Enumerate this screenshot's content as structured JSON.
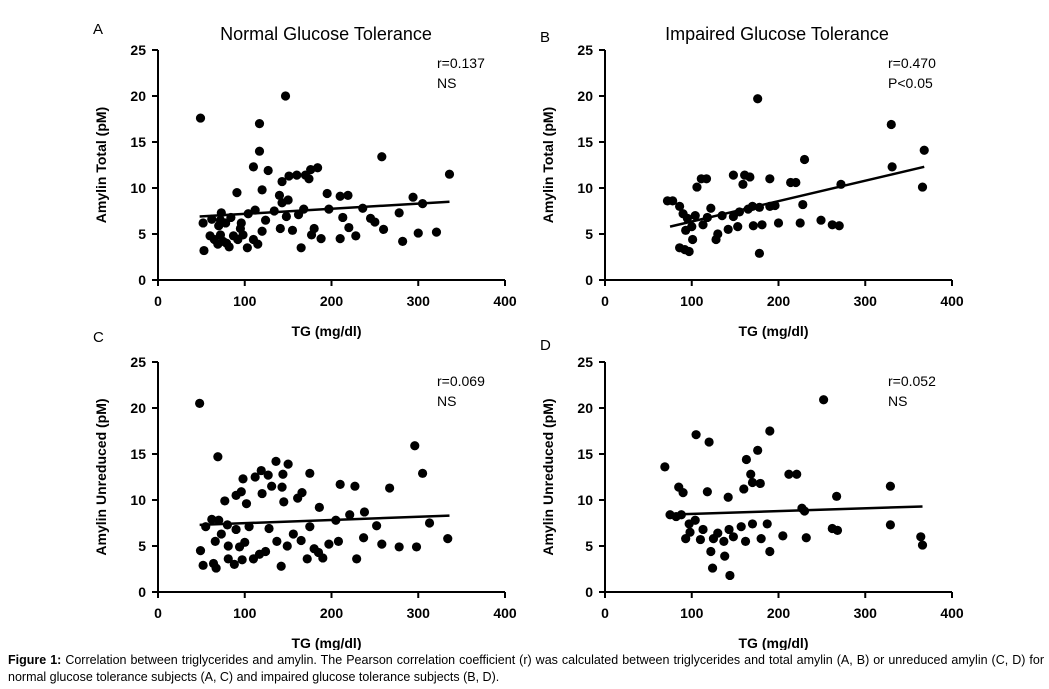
{
  "chart_data": [
    {
      "type": "scatter",
      "panel_letter": "A",
      "title": "Normal Glucose Tolerance",
      "xlabel": "TG (mg/dl)",
      "ylabel": "Amylin Total (pM)",
      "xlim": [
        0,
        400
      ],
      "ylim": [
        0,
        25
      ],
      "xticks": [
        0,
        100,
        200,
        300,
        400
      ],
      "yticks": [
        0,
        5,
        10,
        15,
        20,
        25
      ],
      "stats": [
        "r=0.137",
        "NS"
      ],
      "regression": {
        "x": [
          48,
          336
        ],
        "y": [
          6.9,
          8.5
        ]
      },
      "points": [
        [
          49,
          17.6
        ],
        [
          147,
          20.0
        ],
        [
          117,
          17.0
        ],
        [
          117,
          14.0
        ],
        [
          110,
          12.3
        ],
        [
          127,
          11.9
        ],
        [
          151,
          11.3
        ],
        [
          160,
          11.4
        ],
        [
          170,
          11.4
        ],
        [
          176,
          12.0
        ],
        [
          184,
          12.2
        ],
        [
          258,
          13.4
        ],
        [
          174,
          11.0
        ],
        [
          143,
          10.7
        ],
        [
          336,
          11.5
        ],
        [
          91,
          9.5
        ],
        [
          120,
          9.8
        ],
        [
          140,
          9.2
        ],
        [
          195,
          9.4
        ],
        [
          210,
          9.1
        ],
        [
          219,
          9.2
        ],
        [
          294,
          9.0
        ],
        [
          305,
          8.3
        ],
        [
          143,
          8.4
        ],
        [
          150,
          8.7
        ],
        [
          73,
          7.3
        ],
        [
          104,
          7.2
        ],
        [
          134,
          7.5
        ],
        [
          168,
          7.7
        ],
        [
          197,
          7.7
        ],
        [
          236,
          7.8
        ],
        [
          112,
          7.6
        ],
        [
          52,
          6.2
        ],
        [
          62,
          6.6
        ],
        [
          72,
          6.5
        ],
        [
          84,
          6.8
        ],
        [
          96,
          6.2
        ],
        [
          124,
          6.5
        ],
        [
          148,
          6.9
        ],
        [
          162,
          7.1
        ],
        [
          213,
          6.8
        ],
        [
          245,
          6.7
        ],
        [
          250,
          6.3
        ],
        [
          278,
          7.3
        ],
        [
          70,
          5.9
        ],
        [
          78,
          6.2
        ],
        [
          95,
          5.6
        ],
        [
          120,
          5.3
        ],
        [
          141,
          5.6
        ],
        [
          155,
          5.4
        ],
        [
          180,
          5.6
        ],
        [
          220,
          5.7
        ],
        [
          260,
          5.5
        ],
        [
          300,
          5.1
        ],
        [
          321,
          5.2
        ],
        [
          53,
          3.2
        ],
        [
          60,
          4.8
        ],
        [
          65,
          4.4
        ],
        [
          69,
          3.9
        ],
        [
          72,
          4.9
        ],
        [
          75,
          4.2
        ],
        [
          79,
          4.0
        ],
        [
          82,
          3.6
        ],
        [
          87,
          4.8
        ],
        [
          92,
          4.4
        ],
        [
          98,
          4.9
        ],
        [
          103,
          3.5
        ],
        [
          110,
          4.4
        ],
        [
          115,
          3.9
        ],
        [
          165,
          3.5
        ],
        [
          177,
          4.9
        ],
        [
          188,
          4.5
        ],
        [
          210,
          4.5
        ],
        [
          228,
          4.8
        ],
        [
          282,
          4.2
        ]
      ]
    },
    {
      "type": "scatter",
      "panel_letter": "B",
      "title": "Impaired Glucose Tolerance",
      "xlabel": "TG (mg/dl)",
      "ylabel": "Amylin Total (pM)",
      "xlim": [
        0,
        400
      ],
      "ylim": [
        0,
        25
      ],
      "xticks": [
        0,
        100,
        200,
        300,
        400
      ],
      "yticks": [
        0,
        5,
        10,
        15,
        20,
        25
      ],
      "stats": [
        "r=0.470",
        "P<0.05"
      ],
      "regression": {
        "x": [
          75,
          368
        ],
        "y": [
          5.8,
          12.3
        ]
      },
      "points": [
        [
          176,
          19.7
        ],
        [
          330,
          16.9
        ],
        [
          368,
          14.1
        ],
        [
          331,
          12.3
        ],
        [
          230,
          13.1
        ],
        [
          366,
          10.1
        ],
        [
          272,
          10.4
        ],
        [
          214,
          10.6
        ],
        [
          220,
          10.6
        ],
        [
          111,
          11.0
        ],
        [
          117,
          11.0
        ],
        [
          148,
          11.4
        ],
        [
          161,
          11.4
        ],
        [
          167,
          11.2
        ],
        [
          190,
          11.0
        ],
        [
          159,
          10.4
        ],
        [
          106,
          10.1
        ],
        [
          72,
          8.6
        ],
        [
          78,
          8.6
        ],
        [
          86,
          8.0
        ],
        [
          90,
          7.2
        ],
        [
          95,
          6.7
        ],
        [
          104,
          7.0
        ],
        [
          118,
          6.8
        ],
        [
          122,
          7.8
        ],
        [
          135,
          7.0
        ],
        [
          148,
          6.9
        ],
        [
          155,
          7.4
        ],
        [
          165,
          7.7
        ],
        [
          170,
          8.0
        ],
        [
          178,
          7.9
        ],
        [
          190,
          8.0
        ],
        [
          196,
          8.1
        ],
        [
          228,
          8.2
        ],
        [
          200,
          6.2
        ],
        [
          225,
          6.2
        ],
        [
          249,
          6.5
        ],
        [
          262,
          6.0
        ],
        [
          270,
          5.9
        ],
        [
          93,
          5.4
        ],
        [
          100,
          5.8
        ],
        [
          113,
          6.0
        ],
        [
          130,
          5.0
        ],
        [
          142,
          5.5
        ],
        [
          153,
          5.8
        ],
        [
          171,
          5.9
        ],
        [
          181,
          6.0
        ],
        [
          86,
          3.5
        ],
        [
          92,
          3.3
        ],
        [
          97,
          3.1
        ],
        [
          101,
          4.4
        ],
        [
          128,
          4.4
        ],
        [
          178,
          2.9
        ]
      ]
    },
    {
      "type": "scatter",
      "panel_letter": "C",
      "title": "",
      "xlabel": "TG (mg/dl)",
      "ylabel": "Amylin Unreduced (pM)",
      "xlim": [
        0,
        400
      ],
      "ylim": [
        0,
        25
      ],
      "xticks": [
        0,
        100,
        200,
        300,
        400
      ],
      "yticks": [
        0,
        5,
        10,
        15,
        20,
        25
      ],
      "stats": [
        "r=0.069",
        "NS"
      ],
      "regression": {
        "x": [
          48,
          336
        ],
        "y": [
          7.3,
          8.3
        ]
      },
      "points": [
        [
          48,
          20.5
        ],
        [
          69,
          14.7
        ],
        [
          296,
          15.9
        ],
        [
          136,
          14.2
        ],
        [
          150,
          13.9
        ],
        [
          119,
          13.2
        ],
        [
          127,
          12.7
        ],
        [
          144,
          12.8
        ],
        [
          98,
          12.3
        ],
        [
          112,
          12.5
        ],
        [
          175,
          12.9
        ],
        [
          305,
          12.9
        ],
        [
          131,
          11.5
        ],
        [
          143,
          11.4
        ],
        [
          210,
          11.7
        ],
        [
          227,
          11.5
        ],
        [
          267,
          11.3
        ],
        [
          90,
          10.5
        ],
        [
          96,
          10.9
        ],
        [
          120,
          10.7
        ],
        [
          161,
          10.2
        ],
        [
          166,
          10.8
        ],
        [
          77,
          9.9
        ],
        [
          102,
          9.6
        ],
        [
          145,
          9.8
        ],
        [
          186,
          9.2
        ],
        [
          238,
          8.7
        ],
        [
          55,
          7.1
        ],
        [
          62,
          7.9
        ],
        [
          70,
          7.8
        ],
        [
          80,
          7.3
        ],
        [
          90,
          6.8
        ],
        [
          105,
          7.1
        ],
        [
          128,
          6.9
        ],
        [
          156,
          6.3
        ],
        [
          175,
          7.1
        ],
        [
          205,
          7.8
        ],
        [
          221,
          8.4
        ],
        [
          252,
          7.2
        ],
        [
          313,
          7.5
        ],
        [
          66,
          5.5
        ],
        [
          73,
          6.3
        ],
        [
          81,
          5.0
        ],
        [
          94,
          4.9
        ],
        [
          100,
          5.4
        ],
        [
          117,
          4.1
        ],
        [
          137,
          5.5
        ],
        [
          149,
          5.0
        ],
        [
          165,
          5.6
        ],
        [
          180,
          4.7
        ],
        [
          197,
          5.2
        ],
        [
          208,
          5.5
        ],
        [
          237,
          5.9
        ],
        [
          258,
          5.2
        ],
        [
          278,
          4.9
        ],
        [
          298,
          4.9
        ],
        [
          334,
          5.8
        ],
        [
          49,
          4.5
        ],
        [
          52,
          2.9
        ],
        [
          64,
          3.1
        ],
        [
          67,
          2.6
        ],
        [
          81,
          3.6
        ],
        [
          88,
          3.0
        ],
        [
          97,
          3.5
        ],
        [
          110,
          3.6
        ],
        [
          124,
          4.4
        ],
        [
          142,
          2.8
        ],
        [
          172,
          3.6
        ],
        [
          185,
          4.3
        ],
        [
          190,
          3.7
        ],
        [
          229,
          3.6
        ]
      ]
    },
    {
      "type": "scatter",
      "panel_letter": "D",
      "title": "",
      "xlabel": "TG (mg/dl)",
      "ylabel": "Amylin Unreduced (pM)",
      "xlim": [
        0,
        400
      ],
      "ylim": [
        0,
        25
      ],
      "xticks": [
        0,
        100,
        200,
        300,
        400
      ],
      "yticks": [
        0,
        5,
        10,
        15,
        20,
        25
      ],
      "stats": [
        "r=0.052",
        "NS"
      ],
      "regression": {
        "x": [
          70,
          366
        ],
        "y": [
          8.4,
          9.3
        ]
      },
      "points": [
        [
          252,
          20.9
        ],
        [
          190,
          17.5
        ],
        [
          105,
          17.1
        ],
        [
          120,
          16.3
        ],
        [
          176,
          15.4
        ],
        [
          163,
          14.4
        ],
        [
          69,
          13.6
        ],
        [
          168,
          12.8
        ],
        [
          221,
          12.8
        ],
        [
          212,
          12.8
        ],
        [
          329,
          11.5
        ],
        [
          160,
          11.2
        ],
        [
          170,
          11.9
        ],
        [
          179,
          11.8
        ],
        [
          85,
          11.4
        ],
        [
          90,
          10.8
        ],
        [
          118,
          10.9
        ],
        [
          267,
          10.4
        ],
        [
          142,
          10.3
        ],
        [
          227,
          9.1
        ],
        [
          75,
          8.4
        ],
        [
          82,
          8.2
        ],
        [
          88,
          8.4
        ],
        [
          97,
          7.4
        ],
        [
          104,
          7.8
        ],
        [
          113,
          6.8
        ],
        [
          130,
          6.4
        ],
        [
          143,
          6.8
        ],
        [
          157,
          7.1
        ],
        [
          170,
          7.4
        ],
        [
          187,
          7.4
        ],
        [
          230,
          8.8
        ],
        [
          329,
          7.3
        ],
        [
          93,
          5.8
        ],
        [
          98,
          6.5
        ],
        [
          110,
          5.7
        ],
        [
          125,
          5.8
        ],
        [
          137,
          5.5
        ],
        [
          148,
          6.0
        ],
        [
          162,
          5.5
        ],
        [
          180,
          5.8
        ],
        [
          205,
          6.1
        ],
        [
          232,
          5.9
        ],
        [
          262,
          6.9
        ],
        [
          268,
          6.7
        ],
        [
          364,
          6.0
        ],
        [
          366,
          5.1
        ],
        [
          122,
          4.4
        ],
        [
          138,
          3.9
        ],
        [
          190,
          4.4
        ],
        [
          124,
          2.6
        ],
        [
          144,
          1.8
        ]
      ]
    }
  ],
  "caption": {
    "label": "Figure 1:",
    "text": " Correlation between triglycerides and amylin. The Pearson correlation coefficient (r) was calculated between triglycerides and total amylin (A, B) or unreduced amylin (C, D) for normal glucose tolerance subjects (A, C) and impaired glucose tolerance subjects (B, D)."
  }
}
